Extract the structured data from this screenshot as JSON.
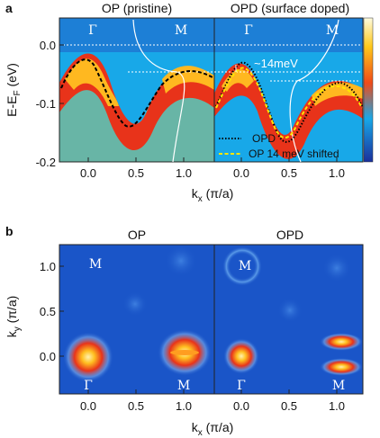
{
  "panel_a": {
    "label": "a",
    "title_left": "OP (pristine)",
    "title_right": "OPD (surface doped)",
    "ylabel_main": "E-E",
    "ylabel_sub": "F",
    "ylabel_unit": " (eV)",
    "xlabel_main": "k",
    "xlabel_sub": "x",
    "xlabel_unit": " (π/a)",
    "yticks": [
      "0.0",
      "-0.1",
      "-0.2"
    ],
    "xticks_left": [
      "0.0",
      "0.5",
      "1.0"
    ],
    "xticks_right": [
      "0.0",
      "0.5",
      "1.0"
    ],
    "sym_gamma": "Γ",
    "sym_m": "M",
    "shift_label": "~14meV",
    "legend_opd": "OPD",
    "legend_shift": "OP 14 meV shifted"
  },
  "panel_b": {
    "label": "b",
    "title_left": "OP",
    "title_right": "OPD",
    "ylabel_main": "k",
    "ylabel_sub": "y",
    "ylabel_unit": " (π/a)",
    "xlabel_main": "k",
    "xlabel_sub": "x",
    "xlabel_unit": " (π/a)",
    "yticks": [
      "1.0",
      "0.5",
      "0.0"
    ],
    "xticks_left": [
      "0.0",
      "0.5",
      "1.0"
    ],
    "xticks_right": [
      "0.0",
      "0.5",
      "1.0"
    ],
    "sym_gamma": "Γ",
    "sym_m": "M"
  },
  "colors": {
    "bg_blue": "#1a55c8",
    "hot": "#e8331a",
    "warm": "#ffd21f",
    "opd_line": "#000000",
    "shift_line": "#ffe600"
  }
}
